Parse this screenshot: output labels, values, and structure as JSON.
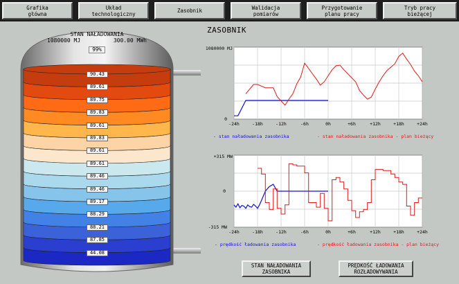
{
  "nav": [
    {
      "label": "Grafika\ngłówna"
    },
    {
      "label": "Układ\ntechnologiczny"
    },
    {
      "label": "Zasobnik"
    },
    {
      "label": "Walidacja\npomiarów"
    },
    {
      "label": "Przygotowanie\nplanu pracy"
    },
    {
      "label": "Tryb pracy\nbieżącej"
    }
  ],
  "page_title": "ZASOBNIK",
  "tank": {
    "title": "STAN NAŁADOWANIA",
    "energy": "1080000 MJ",
    "power": "300.00 MWh",
    "percent": "99%",
    "layers": [
      {
        "value": "90.43",
        "color": "#c53d0f"
      },
      {
        "value": "89.61",
        "color": "#e34a10"
      },
      {
        "value": "89.75",
        "color": "#ff6a14"
      },
      {
        "value": "89.83",
        "color": "#ff8a22"
      },
      {
        "value": "89.61",
        "color": "#ffb64a"
      },
      {
        "value": "89.83",
        "color": "#fcd4a6"
      },
      {
        "value": "89.61",
        "color": "#fce6cc"
      },
      {
        "value": "89.61",
        "color": "#cbe8ee"
      },
      {
        "value": "89.46",
        "color": "#aad8ec"
      },
      {
        "value": "89.46",
        "color": "#86c4ec"
      },
      {
        "value": "89.17",
        "color": "#58a8ec"
      },
      {
        "value": "88.29",
        "color": "#4282e6"
      },
      {
        "value": "88.21",
        "color": "#3c62da"
      },
      {
        "value": "87.85",
        "color": "#2a3ed0"
      },
      {
        "value": "44.08",
        "color": "#1c28c4"
      }
    ]
  },
  "chart_data": [
    {
      "type": "line",
      "y_top_label": "1080000 MJ",
      "y_bottom_label": "0",
      "x_ticks": [
        "-24h",
        "-18h",
        "-12h",
        "-6h",
        "0h",
        "+6h",
        "+12h",
        "+18h",
        "+24h"
      ],
      "ylim": [
        0,
        1080000
      ],
      "grid": true,
      "series": [
        {
          "name": "stan naładowania zasobnika",
          "color": "#1010d8",
          "x": [
            -24,
            -23,
            -21,
            -20.5,
            -3,
            0
          ],
          "y": [
            50000,
            50000,
            280000,
            280000,
            280000,
            280000
          ]
        },
        {
          "name": "stan naładowania zasobnika - plan bieżący",
          "color": "#e01818",
          "x": [
            -21,
            -19,
            -18,
            -16,
            -14,
            -13,
            -11,
            -10,
            -9,
            -8,
            -7,
            -6,
            -5,
            -4,
            -3,
            -2,
            -1,
            0,
            1,
            2,
            3,
            4,
            5,
            6,
            7,
            8,
            9,
            10,
            11,
            12,
            13,
            14,
            15,
            16,
            17,
            18,
            19,
            20,
            21,
            22,
            23,
            24
          ],
          "y": [
            380000,
            520000,
            520000,
            470000,
            470000,
            340000,
            210000,
            300000,
            380000,
            530000,
            630000,
            840000,
            760000,
            680000,
            600000,
            510000,
            560000,
            650000,
            740000,
            800000,
            810000,
            740000,
            680000,
            620000,
            560000,
            430000,
            360000,
            300000,
            330000,
            450000,
            560000,
            650000,
            730000,
            780000,
            830000,
            940000,
            990000,
            900000,
            820000,
            720000,
            650000,
            560000
          ]
        }
      ]
    },
    {
      "type": "line",
      "y_top_label": "+315 MW",
      "y_mid_label": "0",
      "y_bottom_label": "-315 MW",
      "x_ticks": [
        "-24h",
        "-18h",
        "-12h",
        "-6h",
        "0h",
        "+6h",
        "+12h",
        "+18h",
        "+24h"
      ],
      "ylim": [
        -315,
        315
      ],
      "grid": true,
      "series": [
        {
          "name": "prędkość ładowania zasobnika",
          "color": "#1010d8",
          "x": [
            -24,
            -23.5,
            -23,
            -22.5,
            -22,
            -21.5,
            -21,
            -20.5,
            -20,
            -19.5,
            -19,
            -18.5,
            -18,
            -17.5,
            -17,
            -16.5,
            -16,
            -15,
            -14,
            -13,
            0
          ],
          "y": [
            -120,
            -140,
            -110,
            -145,
            -125,
            -130,
            -150,
            -120,
            -135,
            -140,
            -115,
            -130,
            -150,
            -120,
            -80,
            -40,
            0,
            40,
            60,
            0,
            0
          ]
        },
        {
          "name": "prędkość ładowania zasobnika - plan bieżący",
          "color": "#e01818",
          "x": [
            -18,
            -17,
            -17,
            -16,
            -16,
            -15,
            -15,
            -14,
            -14,
            -13,
            -13,
            -12,
            -12,
            -11,
            -11,
            -10,
            -10,
            -9,
            -9,
            -8,
            -8,
            -6,
            -6,
            -5,
            -5,
            -3,
            -3,
            -2,
            -2,
            -1,
            -1,
            0,
            0,
            1,
            1,
            2,
            2,
            3,
            3,
            4,
            4,
            5,
            5,
            6,
            6,
            7,
            7,
            8,
            8,
            9,
            9,
            10,
            10,
            11,
            11,
            12,
            12,
            14,
            14,
            16,
            16,
            17,
            17,
            18,
            18,
            19,
            19,
            20,
            20,
            21,
            21,
            22,
            22,
            23,
            23,
            24
          ],
          "y": [
            200,
            200,
            150,
            150,
            -100,
            -100,
            -160,
            -160,
            20,
            20,
            -150,
            -150,
            -200,
            -200,
            -120,
            -120,
            240,
            240,
            230,
            230,
            220,
            220,
            160,
            160,
            -100,
            -100,
            -140,
            -140,
            -20,
            -20,
            -150,
            -150,
            -260,
            -260,
            100,
            100,
            120,
            120,
            80,
            80,
            20,
            20,
            -80,
            -80,
            -170,
            -170,
            -230,
            -230,
            -180,
            -180,
            -160,
            -160,
            -100,
            -100,
            100,
            100,
            190,
            190,
            180,
            180,
            150,
            150,
            120,
            120,
            80,
            80,
            60,
            60,
            -130,
            -130,
            -210,
            -210,
            -100,
            -100,
            -60,
            -60
          ]
        }
      ]
    }
  ],
  "legend1": {
    "actual": "- stan naładowania zasobnika",
    "plan": "- stan naładowania zasobnika - plan bieżący"
  },
  "legend2": {
    "actual": "- prędkość ładowania zasobnika",
    "plan": "- prędkość ładowania zasobnika - plan bieżący"
  },
  "buttons": {
    "state": "STAN NAŁADOWANIA\nZASOBNIKA",
    "speed": "PRĘDKOŚĆ ŁADOWANIA\nROZŁADOWYWANIA"
  }
}
